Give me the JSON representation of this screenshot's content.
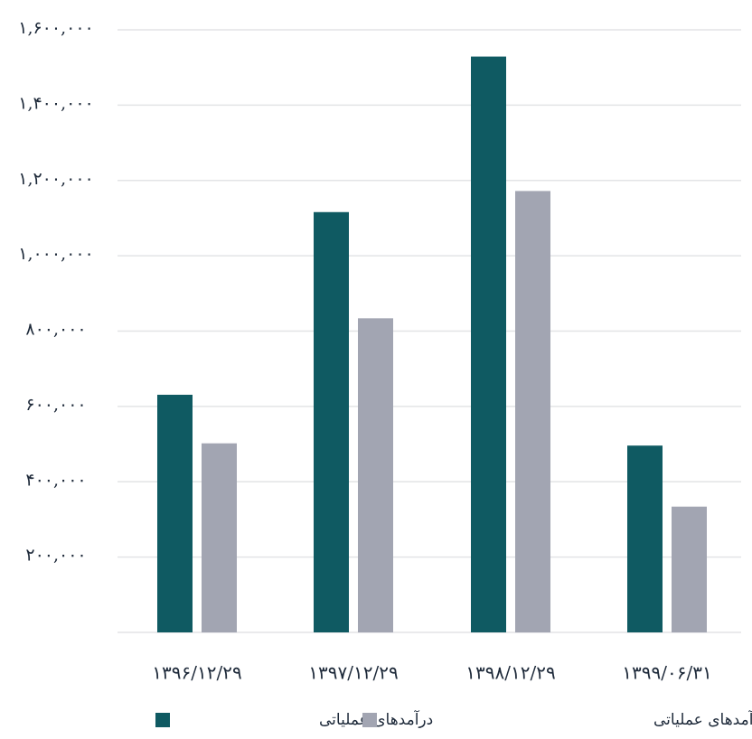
{
  "chart_data": {
    "type": "bar",
    "categories": [
      "۱۳۹۶/۱۲/۲۹",
      "۱۳۹۷/۱۲/۲۹",
      "۱۳۹۸/۱۲/۲۹",
      "۱۳۹۹/۰۶/۳۱"
    ],
    "series": [
      {
        "name": "درآمدهای عملیاتی",
        "color": "#0f5a62",
        "values": [
          631000,
          1116000,
          1529000,
          496000
        ]
      },
      {
        "name": "بهای تمام شده درآمدهای عملیاتی",
        "color": "#a2a5b2",
        "values": [
          502000,
          834000,
          1172000,
          334000
        ]
      }
    ],
    "ylim": [
      0,
      1600000
    ],
    "yticks": [
      200000,
      400000,
      600000,
      800000,
      1000000,
      1200000,
      1400000,
      1600000
    ],
    "ytick_labels": [
      "۲۰۰,۰۰۰",
      "۴۰۰,۰۰۰",
      "۶۰۰,۰۰۰",
      "۸۰۰,۰۰۰",
      "۱,۰۰۰,۰۰۰",
      "۱,۲۰۰,۰۰۰",
      "۱,۴۰۰,۰۰۰",
      "۱,۶۰۰,۰۰۰"
    ],
    "grid": true,
    "legend_position": "bottom",
    "title": "",
    "xlabel": "",
    "ylabel": ""
  }
}
